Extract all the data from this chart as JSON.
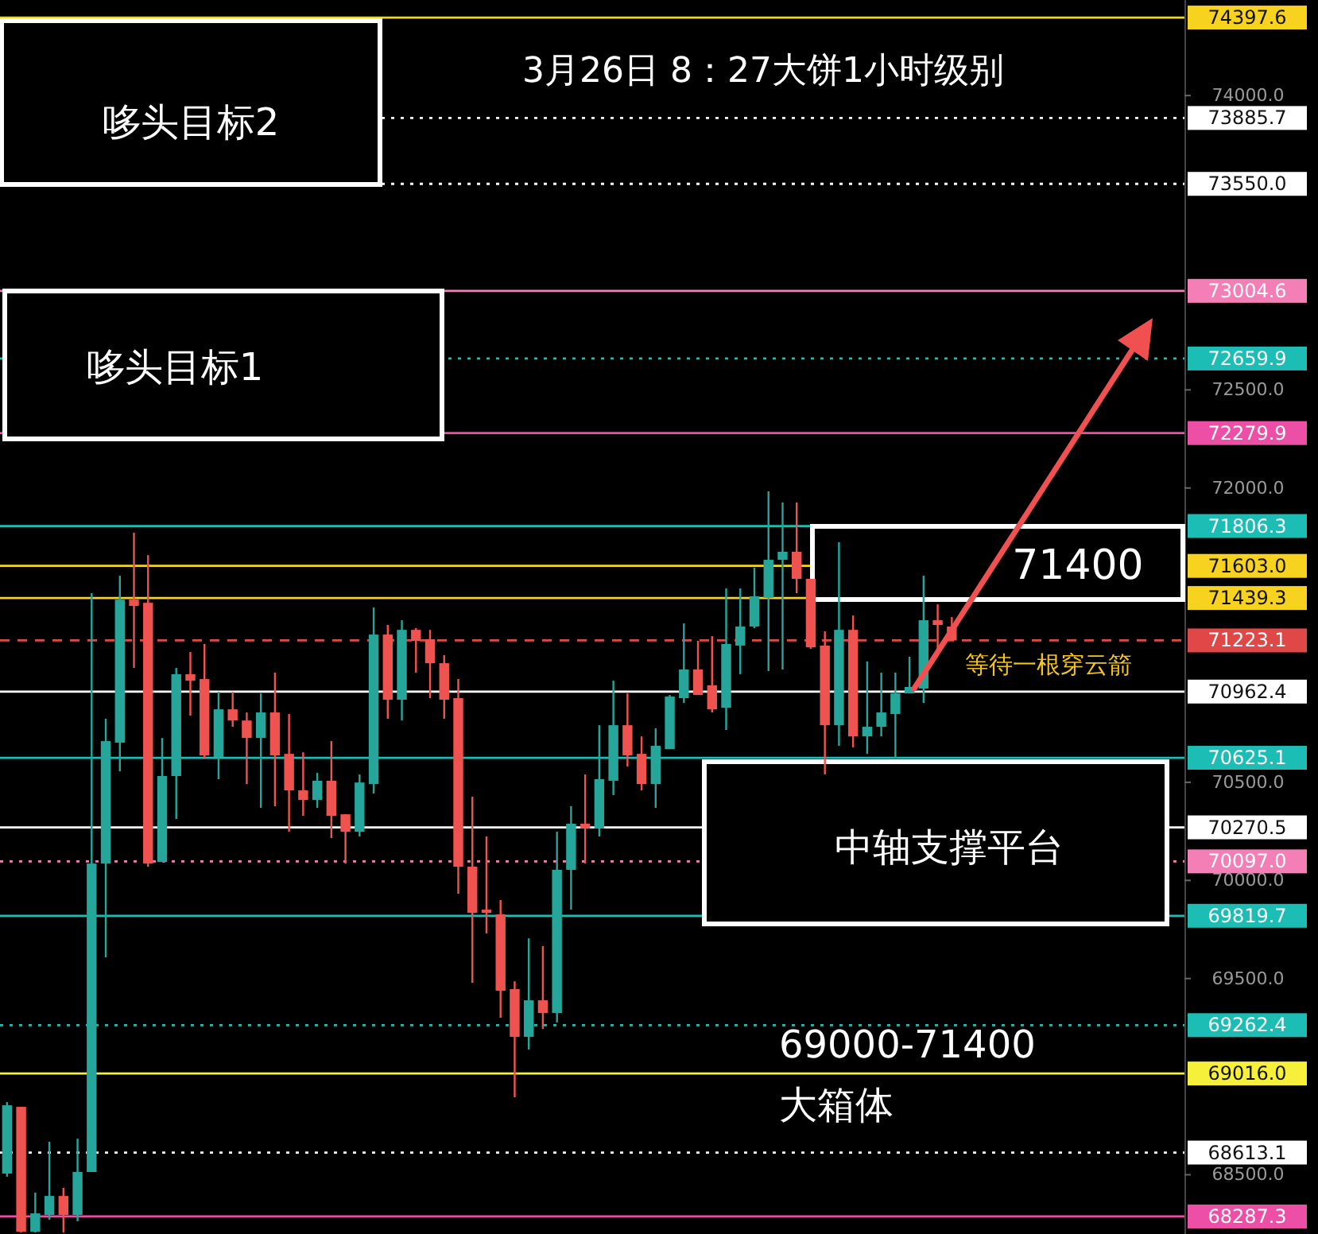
{
  "chart_data": {
    "type": "candlestick",
    "title": "3月26日 8：27大饼1小时级别",
    "categories": [
      null,
      null,
      null,
      null,
      null,
      null,
      null,
      null,
      null,
      null,
      null,
      null,
      null,
      null,
      null,
      null,
      null,
      null,
      null,
      null,
      null,
      null,
      null,
      null,
      null,
      null,
      null,
      null,
      null,
      null,
      null,
      null,
      null,
      null,
      null,
      null,
      null,
      null,
      null,
      null,
      null,
      null,
      null,
      null,
      null,
      null,
      null,
      null,
      null,
      null,
      null,
      null,
      null,
      null,
      null,
      null,
      null,
      null,
      null,
      null,
      null,
      null,
      null,
      null,
      null,
      null,
      null,
      null,
      null,
      null,
      null,
      null,
      null,
      null,
      null,
      null,
      null,
      null,
      null,
      null,
      null,
      null,
      null,
      null
    ],
    "ohlc": [
      [
        68506,
        68870,
        68490,
        68854
      ],
      [
        68846,
        68846,
        68205,
        68210
      ],
      [
        68210,
        68409,
        68205,
        68303
      ],
      [
        68295,
        68668,
        68271,
        68392
      ],
      [
        68392,
        68433,
        68205,
        68295
      ],
      [
        68295,
        68684,
        68263,
        68514
      ],
      [
        68514,
        71464,
        68514,
        70086
      ],
      [
        70086,
        70824,
        69608,
        70710
      ],
      [
        70702,
        71553,
        70556,
        71431
      ],
      [
        71431,
        71772,
        71083,
        71399
      ],
      [
        71415,
        71658,
        70070,
        70086
      ],
      [
        70094,
        70726,
        70094,
        70532
      ],
      [
        70532,
        71083,
        70313,
        71051
      ],
      [
        71051,
        71164,
        70840,
        71018
      ],
      [
        71026,
        71205,
        70620,
        70637
      ],
      [
        70629,
        70961,
        70516,
        70872
      ],
      [
        70872,
        70961,
        70783,
        70815
      ],
      [
        70815,
        70856,
        70491,
        70726
      ],
      [
        70726,
        70953,
        70370,
        70856
      ],
      [
        70856,
        71059,
        70378,
        70637
      ],
      [
        70645,
        70848,
        70248,
        70459
      ],
      [
        70459,
        70653,
        70329,
        70410
      ],
      [
        70410,
        70548,
        70370,
        70508
      ],
      [
        70508,
        70710,
        70216,
        70329
      ],
      [
        70337,
        70337,
        70086,
        70248
      ],
      [
        70248,
        70540,
        70224,
        70499
      ],
      [
        70491,
        71391,
        70443,
        71253
      ],
      [
        71253,
        71302,
        70824,
        70921
      ],
      [
        70921,
        71326,
        70815,
        71277
      ],
      [
        71277,
        71286,
        71059,
        71221
      ],
      [
        71229,
        71277,
        70929,
        71107
      ],
      [
        71107,
        71148,
        70824,
        70921
      ],
      [
        70929,
        71026,
        69932,
        70070
      ],
      [
        70070,
        70427,
        69478,
        69835
      ],
      [
        69851,
        70224,
        69730,
        69835
      ],
      [
        69827,
        69900,
        69300,
        69438
      ],
      [
        69446,
        69486,
        68895,
        69203
      ],
      [
        69203,
        69705,
        69138,
        69389
      ],
      [
        69389,
        69665,
        69243,
        69324
      ],
      [
        69324,
        70248,
        69276,
        70054
      ],
      [
        70054,
        70378,
        69851,
        70289
      ],
      [
        70289,
        70540,
        70086,
        70265
      ],
      [
        70265,
        70791,
        70224,
        70516
      ],
      [
        70508,
        71018,
        70435,
        70791
      ],
      [
        70791,
        70953,
        70580,
        70637
      ],
      [
        70645,
        70734,
        70459,
        70491
      ],
      [
        70491,
        70775,
        70370,
        70686
      ],
      [
        70669,
        70945,
        70669,
        70937
      ],
      [
        70929,
        71310,
        70904,
        71075
      ],
      [
        71075,
        71221,
        70945,
        70945
      ],
      [
        70994,
        71245,
        70856,
        70872
      ],
      [
        70880,
        71488,
        70767,
        71205
      ],
      [
        71197,
        71488,
        71051,
        71294
      ],
      [
        71294,
        71594,
        71285,
        71448
      ],
      [
        71440,
        71983,
        71067,
        71634
      ],
      [
        71634,
        71926,
        71075,
        71675
      ],
      [
        71675,
        71926,
        71464,
        71537
      ],
      [
        71537,
        71537,
        71180,
        71188
      ],
      [
        71197,
        71270,
        70540,
        70791
      ],
      [
        70791,
        71723,
        70686,
        71277
      ],
      [
        71277,
        71350,
        70678,
        70734
      ],
      [
        70734,
        71116,
        70645,
        70783
      ],
      [
        70783,
        71059,
        70734,
        70856
      ],
      [
        70848,
        71059,
        70621,
        70953
      ],
      [
        70953,
        71140,
        70953,
        70986
      ],
      [
        70978,
        71553,
        70904,
        71326
      ],
      [
        71326,
        71407,
        71164,
        71302
      ],
      [
        71294,
        71342,
        71221,
        71223
      ],
      null,
      null,
      null,
      null,
      null,
      null,
      null,
      null,
      null,
      null,
      null,
      null,
      null,
      null,
      null,
      null
    ],
    "colors": [
      "#26a69a",
      "#ef5350",
      "#26a69a",
      "#26a69a",
      "#ef5350",
      "#26a69a",
      "#26a69a",
      "#26a69a",
      "#26a69a",
      "#ef5350",
      "#ef5350",
      "#26a69a",
      "#26a69a",
      "#ef5350",
      "#ef5350",
      "#26a69a",
      "#ef5350",
      "#ef5350",
      "#26a69a",
      "#ef5350",
      "#ef5350",
      "#ef5350",
      "#26a69a",
      "#ef5350",
      "#ef5350",
      "#26a69a",
      "#26a69a",
      "#ef5350",
      "#26a69a",
      "#ef5350",
      "#ef5350",
      "#ef5350",
      "#ef5350",
      "#ef5350",
      "#ef5350",
      "#ef5350",
      "#ef5350",
      "#26a69a",
      "#ef5350",
      "#26a69a",
      "#26a69a",
      "#ef5350",
      "#26a69a",
      "#26a69a",
      "#ef5350",
      "#ef5350",
      "#26a69a",
      "#26a69a",
      "#26a69a",
      "#ef5350",
      "#ef5350",
      "#26a69a",
      "#26a69a",
      "#26a69a",
      "#26a69a",
      "#26a69a",
      "#ef5350",
      "#ef5350",
      "#ef5350",
      "#26a69a",
      "#ef5350",
      "#26a69a",
      "#26a69a",
      "#26a69a",
      "#26a69a",
      "#26a69a",
      "#ef5350",
      "#ef5350",
      null,
      null,
      null,
      null,
      null,
      null,
      null,
      null,
      null,
      null,
      null,
      null,
      null,
      null,
      null,
      null
    ],
    "ylim": [
      68198,
      74487
    ],
    "yticks": [
      {
        "value": 74000,
        "label": "74000.0"
      },
      {
        "value": 72500,
        "label": "72500.0"
      },
      {
        "value": 72000,
        "label": "72000.0"
      },
      {
        "value": 70500,
        "label": "70500.0"
      },
      {
        "value": 70000,
        "label": "70000.0"
      },
      {
        "value": 69500,
        "label": "69500.0"
      },
      {
        "value": 68500,
        "label": "68500.0"
      }
    ],
    "grid": false,
    "ref_lines": [
      {
        "axis": "y",
        "value": 74397.6,
        "label": "74397.6",
        "color": "#f7d21e",
        "line_style": "solid"
      },
      {
        "axis": "y",
        "value": 73885.7,
        "label": "73885.7",
        "color": "#ffffff",
        "line_style": "dotted"
      },
      {
        "axis": "y",
        "value": 73550.0,
        "label": "73550.0",
        "color": "#ffffff",
        "line_style": "dotted"
      },
      {
        "axis": "y",
        "value": 73004.6,
        "label": "73004.6",
        "color": "#f47fb6",
        "line_style": "solid"
      },
      {
        "axis": "y",
        "value": 72659.9,
        "label": "72659.9",
        "color": "#1bbdb5",
        "line_style": "dotted"
      },
      {
        "axis": "y",
        "value": 72279.9,
        "label": "72279.9",
        "color": "#ee4fa6",
        "line_style": "solid"
      },
      {
        "axis": "y",
        "value": 71806.3,
        "label": "71806.3",
        "color": "#1bbdb5",
        "line_style": "solid"
      },
      {
        "axis": "y",
        "value": 71603.0,
        "label": "71603.0",
        "color": "#f7d21e",
        "line_style": "solid"
      },
      {
        "axis": "y",
        "value": 71439.3,
        "label": "71439.3",
        "color": "#f7d21e",
        "line_style": "solid"
      },
      {
        "axis": "y",
        "value": 71223.1,
        "label": "71223.1",
        "color": "#e04848",
        "line_style": "dashed"
      },
      {
        "axis": "y",
        "value": 70962.4,
        "label": "70962.4",
        "color": "#ffffff",
        "line_style": "solid"
      },
      {
        "axis": "y",
        "value": 70625.1,
        "label": "70625.1",
        "color": "#1bbdb5",
        "line_style": "solid"
      },
      {
        "axis": "y",
        "value": 70270.5,
        "label": "70270.5",
        "color": "#ffffff",
        "line_style": "solid"
      },
      {
        "axis": "y",
        "value": 70097.0,
        "label": "70097.0",
        "color": "#f47fb6",
        "line_style": "dotted"
      },
      {
        "axis": "y",
        "value": 69819.7,
        "label": "69819.7",
        "color": "#1bbdb5",
        "line_style": "solid"
      },
      {
        "axis": "y",
        "value": 69262.4,
        "label": "69262.4",
        "color": "#1bbdb5",
        "line_style": "dotted"
      },
      {
        "axis": "y",
        "value": 69016.0,
        "label": "69016.0",
        "color": "#f7f03a",
        "line_style": "solid"
      },
      {
        "axis": "y",
        "value": 68613.1,
        "label": "68613.1",
        "color": "#ffffff",
        "line_style": "dotted"
      },
      {
        "axis": "y",
        "value": 68287.3,
        "label": "68287.3",
        "color": "#ee4fa6",
        "line_style": "solid"
      }
    ],
    "annotations": [
      "哆头目标2",
      "哆头目标1",
      "71400",
      "中轴支撑平台",
      "69000-71400",
      "大箱体",
      "等待一根穿云箭"
    ]
  }
}
